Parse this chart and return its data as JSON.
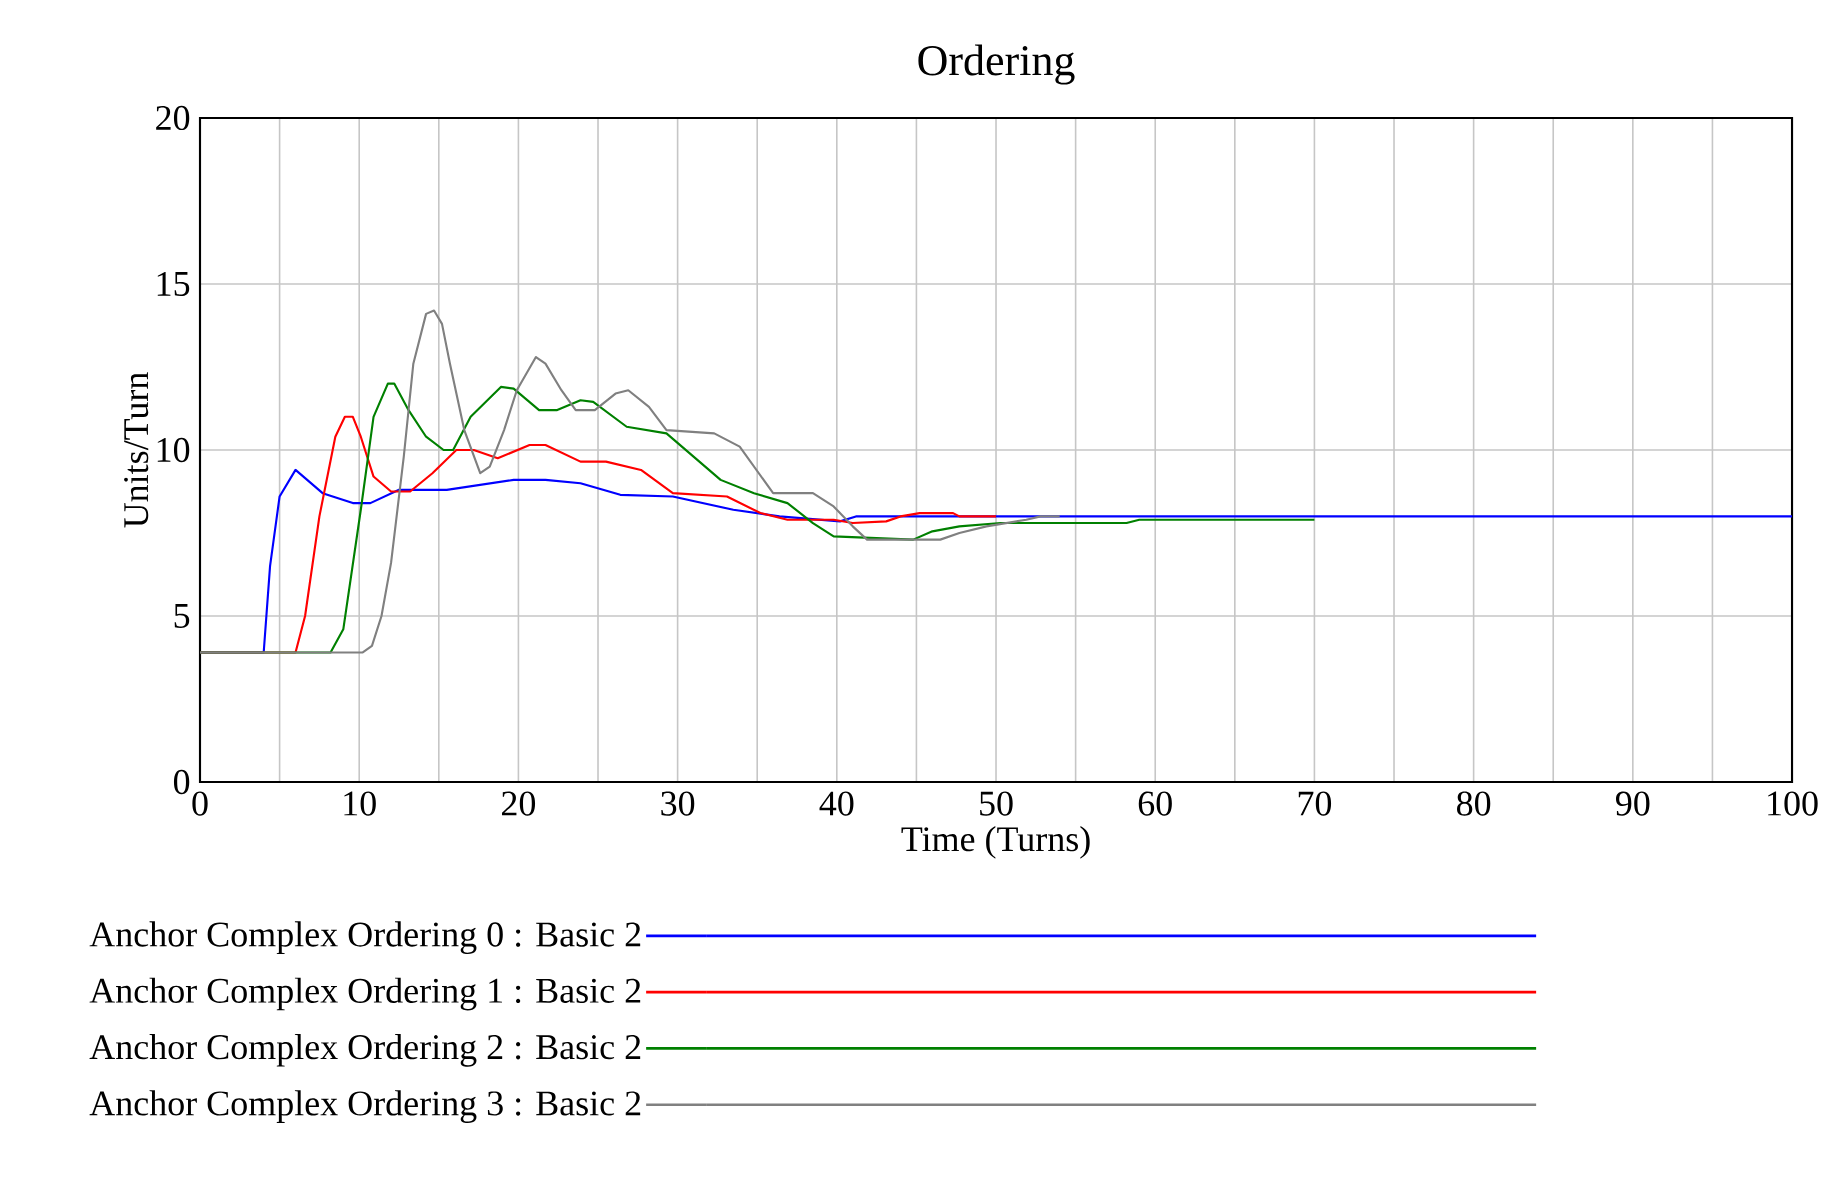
{
  "chart_data": {
    "type": "line",
    "title": "Ordering",
    "xlabel": "Time (Turns)",
    "ylabel": "Units/Turn",
    "xlim": [
      0,
      100
    ],
    "ylim": [
      0,
      20
    ],
    "xticks": [
      0,
      {
        "value": 5,
        "label": null
      },
      10,
      {
        "value": 15,
        "label": null
      },
      20,
      {
        "value": 25,
        "label": null
      },
      30,
      {
        "value": 35,
        "label": null
      },
      40,
      {
        "value": 45,
        "label": null
      },
      50,
      {
        "value": 55,
        "label": null
      },
      60,
      {
        "value": 65,
        "label": null
      },
      70,
      {
        "value": 75,
        "label": null
      },
      80,
      {
        "value": 85,
        "label": null
      },
      90,
      {
        "value": 95,
        "label": null
      },
      100
    ],
    "yticks": [
      0,
      5,
      10,
      15,
      20
    ],
    "grid": true,
    "legend": "bottom",
    "series": [
      {
        "name": "Anchor Complex Ordering 0 : Basic 2",
        "color": "#0000ff",
        "x": [
          0,
          4,
          4.4,
          5,
          6,
          7.7,
          9.6,
          10.7,
          12.5,
          15.5,
          19.7,
          21.7,
          23.9,
          26.4,
          29.7,
          33.5,
          36.4,
          40.2,
          41.2,
          100
        ],
        "values": [
          3.9,
          3.9,
          6.5,
          8.6,
          9.4,
          8.7,
          8.4,
          8.4,
          8.8,
          8.8,
          9.1,
          9.1,
          9.0,
          8.65,
          8.6,
          8.2,
          8.0,
          7.85,
          8.0,
          8.0
        ]
      },
      {
        "name": "Anchor Complex Ordering 1 : Basic 2",
        "color": "#ff0000",
        "x": [
          0,
          6,
          6.6,
          7.5,
          8.5,
          9.1,
          9.6,
          10.1,
          10.9,
          12,
          13.2,
          14.6,
          16.1,
          17.2,
          18.7,
          20.7,
          21.7,
          23.9,
          25.5,
          27.7,
          29.7,
          33.1,
          35.2,
          36.9,
          39.8,
          41,
          43.1,
          44,
          45.2,
          47.3,
          47.7,
          50
        ],
        "values": [
          3.9,
          3.9,
          5,
          8,
          10.4,
          11,
          11,
          10.4,
          9.2,
          8.75,
          8.75,
          9.3,
          10,
          10,
          9.75,
          10.15,
          10.15,
          9.65,
          9.65,
          9.4,
          8.7,
          8.6,
          8.1,
          7.9,
          7.9,
          7.8,
          7.85,
          8.0,
          8.1,
          8.1,
          8.0,
          8.0
        ]
      },
      {
        "name": "Anchor Complex Ordering 2 : Basic 2",
        "color": "#008000",
        "x": [
          0,
          8.2,
          9,
          10.1,
          10.9,
          11.8,
          12.2,
          13.1,
          14.2,
          15.3,
          15.9,
          17,
          18.9,
          19.7,
          21.3,
          22.4,
          23.9,
          24.7,
          26.8,
          29.3,
          31,
          32.7,
          34.8,
          36.9,
          38.5,
          39.8,
          44.8,
          46,
          47.7,
          50.3,
          58.2,
          59,
          70
        ],
        "values": [
          3.9,
          3.9,
          4.6,
          8.2,
          11,
          12,
          12,
          11.2,
          10.4,
          10,
          10,
          11,
          11.9,
          11.85,
          11.2,
          11.2,
          11.5,
          11.45,
          10.7,
          10.5,
          9.8,
          9.1,
          8.7,
          8.4,
          7.8,
          7.4,
          7.3,
          7.55,
          7.7,
          7.8,
          7.8,
          7.9,
          7.9
        ]
      },
      {
        "name": "Anchor Complex Ordering 3 : Basic 2",
        "color": "#808080",
        "x": [
          0,
          10.2,
          10.8,
          11.4,
          12,
          12.8,
          13.4,
          14.2,
          14.7,
          15.2,
          15.7,
          16.6,
          17.6,
          18.2,
          19.1,
          19.9,
          21.1,
          21.7,
          22.7,
          23.6,
          24.8,
          26.1,
          26.9,
          28.2,
          29.3,
          32.3,
          33.9,
          36,
          38.5,
          39.8,
          41,
          41.9,
          46.5,
          47.7,
          49.4,
          51.9,
          52.8,
          54
        ],
        "values": [
          3.9,
          3.9,
          4.1,
          5,
          6.6,
          9.8,
          12.6,
          14.1,
          14.2,
          13.8,
          12.6,
          10.6,
          9.3,
          9.5,
          10.6,
          11.8,
          12.8,
          12.6,
          11.8,
          11.2,
          11.2,
          11.7,
          11.8,
          11.3,
          10.6,
          10.5,
          10.1,
          8.7,
          8.7,
          8.3,
          7.7,
          7.3,
          7.3,
          7.5,
          7.7,
          7.9,
          8.0,
          8.0
        ]
      }
    ]
  }
}
